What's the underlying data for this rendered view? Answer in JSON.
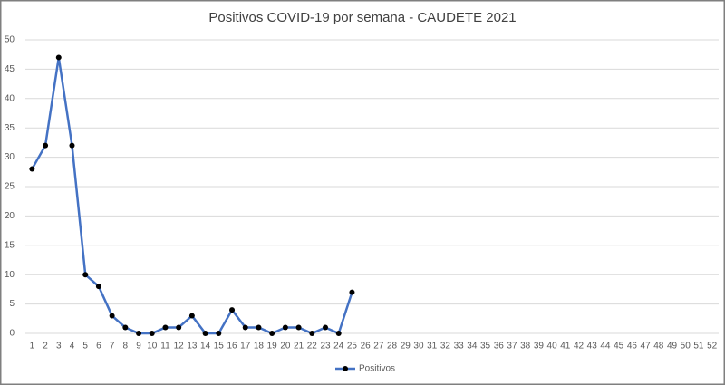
{
  "chart_data": {
    "type": "line",
    "title": "Positivos COVID-19 por semana - CAUDETE 2021",
    "categories": [
      "1",
      "2",
      "3",
      "4",
      "5",
      "6",
      "7",
      "8",
      "9",
      "10",
      "11",
      "12",
      "13",
      "14",
      "15",
      "16",
      "17",
      "18",
      "19",
      "20",
      "21",
      "22",
      "23",
      "24",
      "25",
      "26",
      "27",
      "28",
      "29",
      "30",
      "31",
      "32",
      "33",
      "34",
      "35",
      "36",
      "37",
      "38",
      "39",
      "40",
      "41",
      "42",
      "43",
      "44",
      "45",
      "46",
      "47",
      "48",
      "49",
      "50",
      "51",
      "52"
    ],
    "series": [
      {
        "name": "Positivos",
        "color": "#4472c4",
        "marker_color": "#000000",
        "values": [
          28,
          32,
          47,
          32,
          10,
          8,
          3,
          1,
          0,
          0,
          1,
          1,
          3,
          0,
          0,
          4,
          1,
          1,
          0,
          1,
          1,
          0,
          1,
          0,
          7,
          null,
          null,
          null,
          null,
          null,
          null,
          null,
          null,
          null,
          null,
          null,
          null,
          null,
          null,
          null,
          null,
          null,
          null,
          null,
          null,
          null,
          null,
          null,
          null,
          null,
          null,
          null
        ]
      }
    ],
    "ylim": [
      0,
      50
    ],
    "yticks": [
      0,
      5,
      10,
      15,
      20,
      25,
      30,
      35,
      40,
      45,
      50
    ],
    "grid": true,
    "legend": "bottom"
  }
}
